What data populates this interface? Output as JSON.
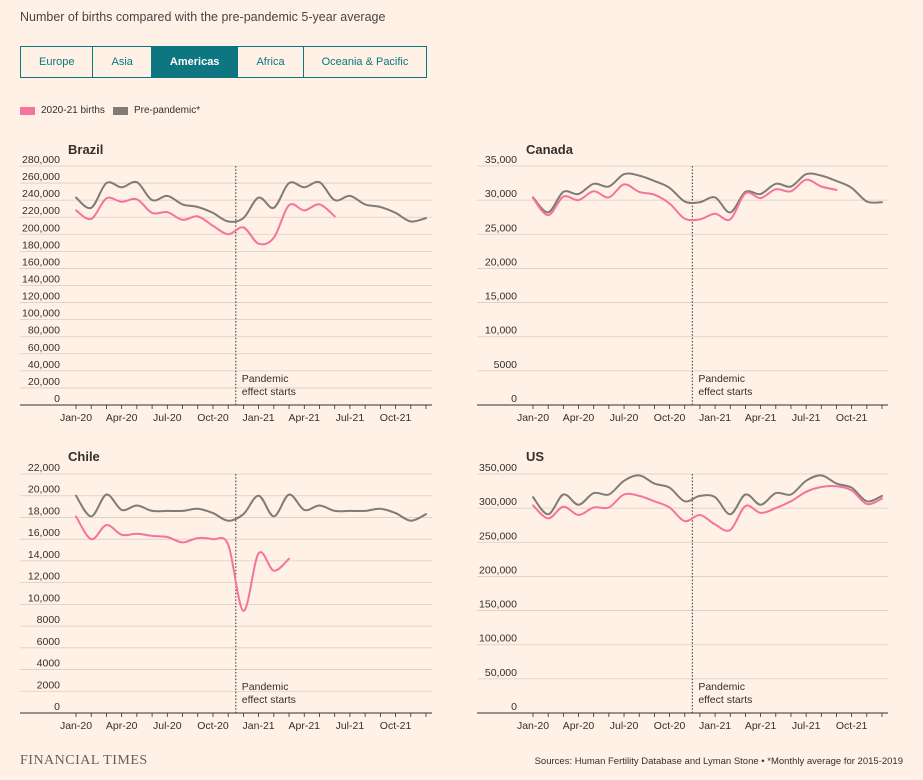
{
  "subtitle": "Number of births compared with the pre-pandemic 5-year average",
  "tabs": [
    {
      "label": "Europe",
      "active": false
    },
    {
      "label": "Asia",
      "active": false
    },
    {
      "label": "Americas",
      "active": true
    },
    {
      "label": "Africa",
      "active": false
    },
    {
      "label": "Oceania & Pacific",
      "active": false
    }
  ],
  "legend": [
    {
      "label": "2020-21 births",
      "color": "#F5739E"
    },
    {
      "label": "Pre-pandemic*",
      "color": "#7F7B78"
    }
  ],
  "annotation": [
    "Pandemic",
    "effect starts"
  ],
  "colors": {
    "births": "#F5739E",
    "prepandemic": "#7F7B78",
    "grid": "#d9ccc1",
    "axis": "#33302E"
  },
  "footer": {
    "logo": "FINANCIAL TIMES",
    "source": "Sources: Human Fertility Database and Lyman Stone • *Monthly average for 2015-2019"
  },
  "chart_data": [
    {
      "type": "line",
      "title": "Brazil",
      "x_ticks": [
        "Jan-20",
        "Apr-20",
        "Jul-20",
        "Oct-20",
        "Jan-21",
        "Apr-21",
        "Jul-21",
        "Oct-21"
      ],
      "ylim": [
        0,
        280000
      ],
      "y_ticks": [
        "0",
        "20,000",
        "40,000",
        "60,000",
        "80,000",
        "100,000",
        "120,000",
        "140,000",
        "160,000",
        "180,000",
        "200,000",
        "220,000",
        "240,000",
        "260,000",
        "280,000"
      ],
      "pandemic_start_month": 10.5,
      "series": [
        {
          "name": "2020-21 births",
          "values": [
            228000,
            218000,
            242000,
            238000,
            241000,
            225000,
            226000,
            217000,
            221000,
            210000,
            200000,
            208000,
            189000,
            196000,
            234000,
            228000,
            235000,
            221000
          ]
        },
        {
          "name": "Pre-pandemic*",
          "values": [
            243000,
            231000,
            260000,
            255000,
            261000,
            240000,
            245000,
            235000,
            232000,
            225000,
            215000,
            219000,
            243000,
            231000,
            260000,
            255000,
            261000,
            240000,
            245000,
            235000,
            232000,
            225000,
            215000,
            219000
          ]
        }
      ]
    },
    {
      "type": "line",
      "title": "Canada",
      "x_ticks": [
        "Jan-20",
        "Apr-20",
        "Jul-20",
        "Oct-20",
        "Jan-21",
        "Apr-21",
        "Jul-21",
        "Oct-21"
      ],
      "ylim": [
        0,
        35000
      ],
      "y_ticks": [
        "0",
        "5000",
        "10,000",
        "15,000",
        "20,000",
        "25,000",
        "30,000",
        "35,000"
      ],
      "pandemic_start_month": 10.5,
      "series": [
        {
          "name": "2020-21 births",
          "values": [
            30300,
            27800,
            30500,
            30000,
            31300,
            30400,
            32300,
            31200,
            30800,
            29500,
            27300,
            27200,
            28000,
            27200,
            31000,
            30300,
            31600,
            31300,
            33000,
            32000,
            31500
          ]
        },
        {
          "name": "Pre-pandemic*",
          "values": [
            30400,
            28200,
            31200,
            30900,
            32400,
            32000,
            33800,
            33600,
            32800,
            31800,
            29800,
            29700,
            30400,
            28200,
            31200,
            30900,
            32400,
            32000,
            33800,
            33600,
            32800,
            31800,
            29800,
            29700
          ]
        }
      ]
    },
    {
      "type": "line",
      "title": "Chile",
      "x_ticks": [
        "Jan-20",
        "Apr-20",
        "Jul-20",
        "Oct-20",
        "Jan-21",
        "Apr-21",
        "Jul-21",
        "Oct-21"
      ],
      "ylim": [
        0,
        22000
      ],
      "y_ticks": [
        "0",
        "2000",
        "4000",
        "6000",
        "8000",
        "10,000",
        "12,000",
        "14,000",
        "16,000",
        "18,000",
        "20,000",
        "22,000"
      ],
      "pandemic_start_month": 10.5,
      "series": [
        {
          "name": "2020-21 births",
          "values": [
            18100,
            16000,
            17300,
            16400,
            16500,
            16300,
            16200,
            15700,
            16100,
            16000,
            15500,
            9400,
            14700,
            13100,
            14200
          ]
        },
        {
          "name": "Pre-pandemic*",
          "values": [
            20000,
            18100,
            20100,
            18700,
            19100,
            18600,
            18600,
            18600,
            18800,
            18400,
            17700,
            18300,
            20000,
            18100,
            20100,
            18700,
            19100,
            18600,
            18600,
            18600,
            18800,
            18400,
            17700,
            18300
          ]
        }
      ]
    },
    {
      "type": "line",
      "title": "US",
      "x_ticks": [
        "Jan-20",
        "Apr-20",
        "Jul-20",
        "Oct-20",
        "Jan-21",
        "Apr-21",
        "Jul-21",
        "Oct-21"
      ],
      "ylim": [
        0,
        350000
      ],
      "y_ticks": [
        "0",
        "50,000",
        "100,000",
        "150,000",
        "200,000",
        "250,000",
        "300,000",
        "350,000"
      ],
      "pandemic_start_month": 10.5,
      "series": [
        {
          "name": "2020-21 births",
          "values": [
            304000,
            285000,
            302000,
            290000,
            301000,
            301000,
            320000,
            318000,
            310000,
            301000,
            281000,
            290000,
            276000,
            268000,
            303000,
            293000,
            300000,
            310000,
            324000,
            331000,
            332000,
            326000,
            306000,
            314000
          ]
        },
        {
          "name": "Pre-pandemic*",
          "values": [
            316000,
            291000,
            320000,
            305000,
            322000,
            320000,
            340000,
            348000,
            336000,
            330000,
            310000,
            318000,
            316000,
            291000,
            320000,
            305000,
            322000,
            320000,
            340000,
            348000,
            336000,
            330000,
            310000,
            318000
          ]
        }
      ]
    }
  ]
}
